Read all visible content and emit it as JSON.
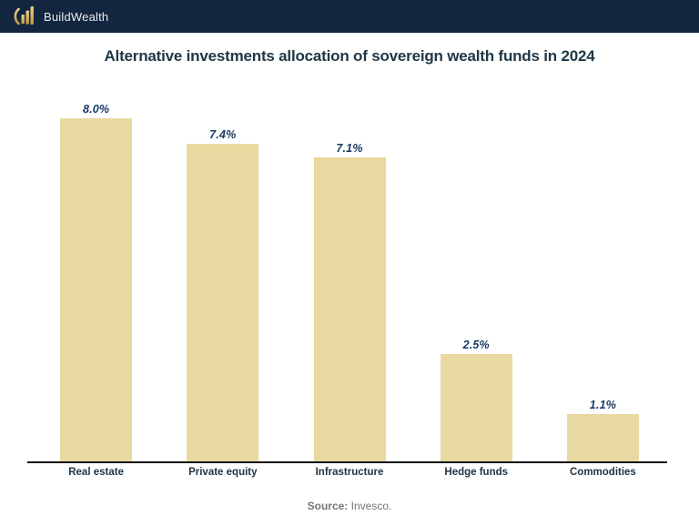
{
  "header": {
    "brand": "BuildWealth",
    "logo_icon": "growth-bars-icon"
  },
  "source": {
    "label": "Source:",
    "text": "Invesco."
  },
  "colors": {
    "header_bg": "#13263f",
    "bar_fill": "#e8d9a1",
    "title_text": "#1e3745",
    "value_label": "#1a3a64",
    "category_label": "#1e3348",
    "source_text": "#757575",
    "axis_line": "#111111",
    "logo_gold_dark": "#bf9a43",
    "logo_gold_light": "#ecd28a"
  },
  "chart_data": {
    "type": "bar",
    "title": "Alternative investments allocation of sovereign wealth funds in 2024",
    "categories": [
      "Real estate",
      "Private equity",
      "Infrastructure",
      "Hedge funds",
      "Commodities"
    ],
    "values": [
      8.0,
      7.4,
      7.1,
      2.5,
      1.1
    ],
    "value_labels": [
      "8.0%",
      "7.4%",
      "7.1%",
      "2.5%",
      "1.1%"
    ],
    "xlabel": "",
    "ylabel": "",
    "ylim": [
      0,
      8.5
    ],
    "grid": false,
    "legend": false,
    "bar_color": "#e8d9a1",
    "value_label_style": "bold-italic"
  }
}
